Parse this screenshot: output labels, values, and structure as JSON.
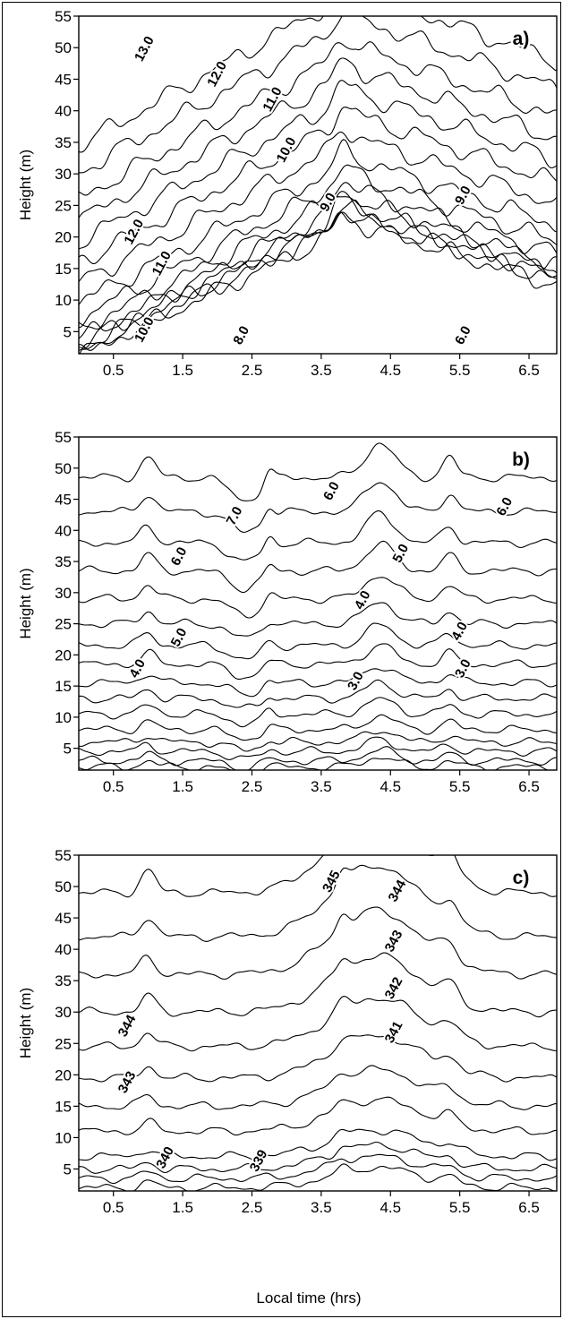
{
  "chart_data": [
    {
      "type": "contour",
      "panel_label": "a)",
      "ylabel": "Height (m)",
      "xlabel": "",
      "xlim": [
        0,
        6.9
      ],
      "ylim": [
        1.5,
        55
      ],
      "xticks": [
        "0.5",
        "1.5",
        "2.5",
        "3.5",
        "4.5",
        "5.5",
        "6.5"
      ],
      "yticks": [
        "5",
        "10",
        "15",
        "20",
        "25",
        "30",
        "35",
        "40",
        "45",
        "50",
        "55"
      ],
      "contour_labels": [
        {
          "text": "13.0",
          "x": 1.0,
          "y": 49.5
        },
        {
          "text": "12.0",
          "x": 2.05,
          "y": 45.5
        },
        {
          "text": "11.0",
          "x": 2.85,
          "y": 41.5
        },
        {
          "text": "10.0",
          "x": 3.05,
          "y": 33.5
        },
        {
          "text": "12.0",
          "x": 0.85,
          "y": 20.5
        },
        {
          "text": "11.0",
          "x": 1.25,
          "y": 15.5
        },
        {
          "text": "9.0",
          "x": 3.65,
          "y": 25.2
        },
        {
          "text": "9.0",
          "x": 5.6,
          "y": 26.3
        },
        {
          "text": "10.0",
          "x": 1.0,
          "y": 5.0
        },
        {
          "text": "8.0",
          "x": 2.4,
          "y": 4.1
        },
        {
          "text": "6.0",
          "x": 5.6,
          "y": 4.1
        }
      ]
    },
    {
      "type": "contour",
      "panel_label": "b)",
      "ylabel": "Height (m)",
      "xlabel": "",
      "xlim": [
        0,
        6.9
      ],
      "ylim": [
        1.5,
        55
      ],
      "xticks": [
        "0.5",
        "1.5",
        "2.5",
        "3.5",
        "4.5",
        "5.5",
        "6.5"
      ],
      "yticks": [
        "5",
        "10",
        "15",
        "20",
        "25",
        "30",
        "35",
        "40",
        "45",
        "50",
        "55"
      ],
      "contour_labels": [
        {
          "text": "7.0",
          "x": 2.3,
          "y": 42.0
        },
        {
          "text": "6.0",
          "x": 3.7,
          "y": 46.0
        },
        {
          "text": "6.0",
          "x": 6.2,
          "y": 43.5
        },
        {
          "text": "6.0",
          "x": 1.5,
          "y": 35.5
        },
        {
          "text": "5.0",
          "x": 4.7,
          "y": 36.0
        },
        {
          "text": "5.0",
          "x": 1.5,
          "y": 22.5
        },
        {
          "text": "4.0",
          "x": 4.15,
          "y": 28.5
        },
        {
          "text": "4.0",
          "x": 5.55,
          "y": 23.5
        },
        {
          "text": "4.0",
          "x": 0.9,
          "y": 17.5
        },
        {
          "text": "3.0",
          "x": 4.05,
          "y": 15.5
        },
        {
          "text": "3.0",
          "x": 5.6,
          "y": 17.5
        }
      ]
    },
    {
      "type": "contour",
      "panel_label": "c)",
      "ylabel": "Height (m)",
      "xlabel": "Local time (hrs)",
      "xlim": [
        0,
        6.9
      ],
      "ylim": [
        1.5,
        55
      ],
      "xticks": [
        "0.5",
        "1.5",
        "2.5",
        "3.5",
        "4.5",
        "5.5",
        "6.5"
      ],
      "yticks": [
        "5",
        "10",
        "15",
        "20",
        "25",
        "30",
        "35",
        "40",
        "45",
        "50",
        "55"
      ],
      "contour_labels": [
        {
          "text": "345",
          "x": 3.7,
          "y": 50.5
        },
        {
          "text": "344",
          "x": 4.65,
          "y": 49.0
        },
        {
          "text": "343",
          "x": 4.6,
          "y": 41.0
        },
        {
          "text": "342",
          "x": 4.6,
          "y": 33.5
        },
        {
          "text": "341",
          "x": 4.6,
          "y": 26.5
        },
        {
          "text": "344",
          "x": 0.75,
          "y": 27.5
        },
        {
          "text": "343",
          "x": 0.75,
          "y": 18.5
        },
        {
          "text": "340",
          "x": 1.3,
          "y": 6.5
        },
        {
          "text": "339",
          "x": 2.65,
          "y": 6.0
        }
      ]
    }
  ]
}
